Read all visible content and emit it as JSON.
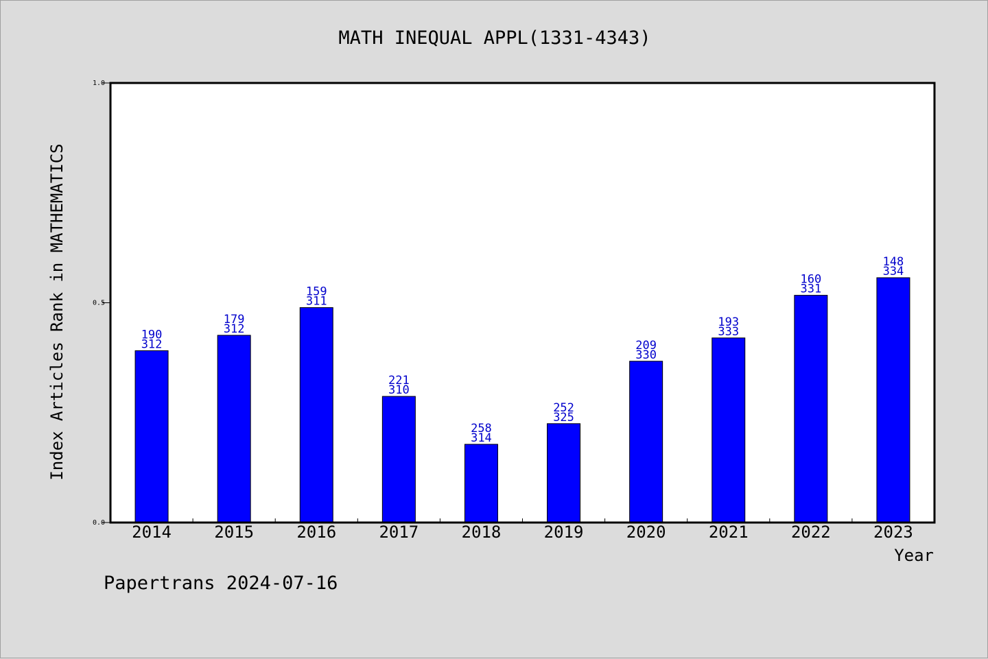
{
  "chart_data": {
    "type": "bar",
    "title": "MATH INEQUAL APPL(1331-4343)",
    "xlabel": "Year",
    "ylabel": "Index Articles Rank in MATHEMATICS",
    "categories": [
      "2014",
      "2015",
      "2016",
      "2017",
      "2018",
      "2019",
      "2020",
      "2021",
      "2022",
      "2023"
    ],
    "values": [
      0.391,
      0.426,
      0.489,
      0.287,
      0.178,
      0.225,
      0.367,
      0.42,
      0.517,
      0.557
    ],
    "label_top": [
      "190",
      "179",
      "159",
      "221",
      "258",
      "252",
      "209",
      "193",
      "160",
      "148"
    ],
    "label_bottom": [
      "312",
      "312",
      "311",
      "310",
      "314",
      "325",
      "330",
      "333",
      "331",
      "334"
    ],
    "ylim": [
      0.0,
      1.0
    ],
    "yticks": [
      "0.0",
      "0.5",
      "1.0"
    ],
    "grid": false,
    "bar_color": "#0000ff",
    "label_color": "#0000cc"
  },
  "footer": {
    "note": "Papertrans 2024-07-16"
  }
}
